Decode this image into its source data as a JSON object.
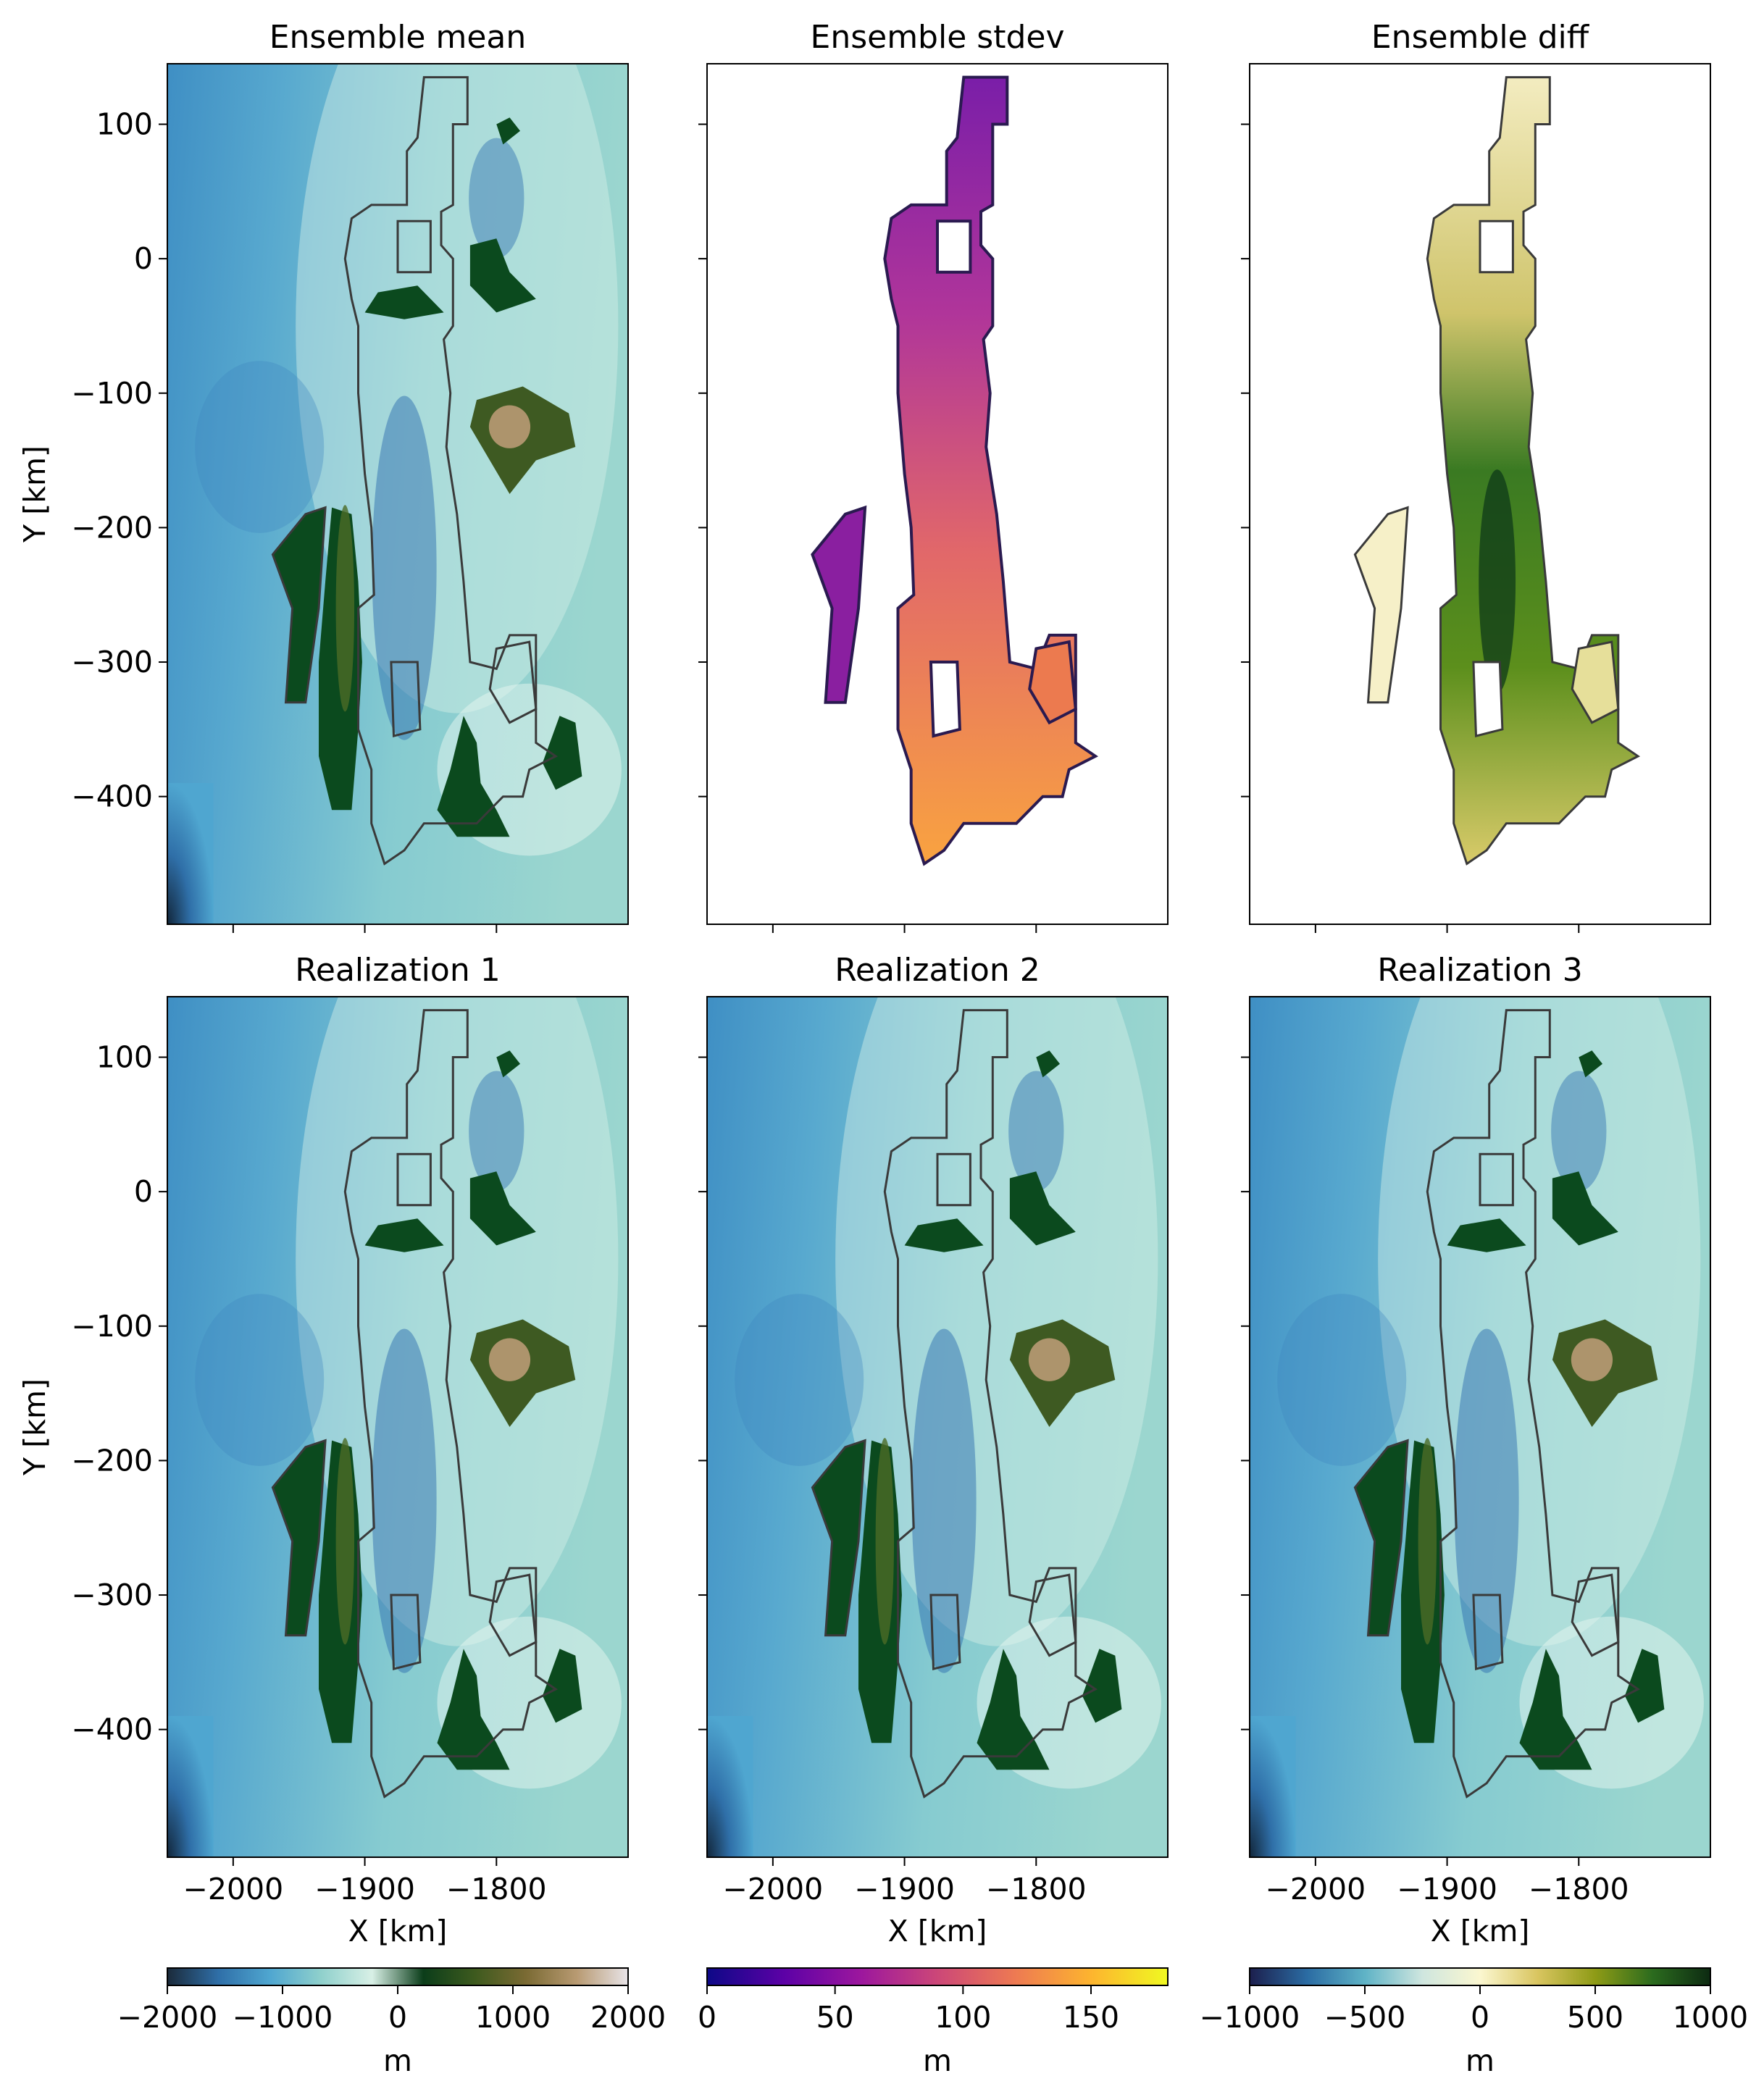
{
  "figure": {
    "panel_titles": [
      "Ensemble mean",
      "Ensemble stdev",
      "Ensemble diff",
      "Realization 1",
      "Realization 2",
      "Realization 3"
    ],
    "y_axis_label": "Y [km]",
    "x_axis_label": "X [km]",
    "colorbar_unit": "m"
  },
  "chart_data": [
    {
      "type": "heatmap",
      "title": "Ensemble mean",
      "xlabel": "",
      "ylabel": "Y [km]",
      "xlim": [
        -2050,
        -1700
      ],
      "ylim": [
        -495,
        145
      ],
      "xticks": [
        -2000,
        -1900,
        -1800
      ],
      "xtick_labels_shown": false,
      "yticks": [
        100,
        0,
        -100,
        -200,
        -300,
        -400
      ],
      "ytick_labels": [
        "100",
        "0",
        "−100",
        "−200",
        "−300",
        "−400"
      ],
      "colormap": "topography",
      "colorbar": "elevation"
    },
    {
      "type": "heatmap",
      "title": "Ensemble stdev",
      "xlabel": "",
      "ylabel": "",
      "xlim": [
        -2050,
        -1700
      ],
      "ylim": [
        -495,
        145
      ],
      "xticks": [
        -2000,
        -1900,
        -1800
      ],
      "yticks": [
        100,
        0,
        -100,
        -200,
        -300,
        -400
      ],
      "colormap": "plasma",
      "colorbar": "stdev"
    },
    {
      "type": "heatmap",
      "title": "Ensemble diff",
      "xlabel": "",
      "ylabel": "",
      "xlim": [
        -2050,
        -1700
      ],
      "ylim": [
        -495,
        145
      ],
      "xticks": [
        -2000,
        -1900,
        -1800
      ],
      "yticks": [
        100,
        0,
        -100,
        -200,
        -300,
        -400
      ],
      "colormap": "diverging",
      "colorbar": "diff"
    },
    {
      "type": "heatmap",
      "title": "Realization 1",
      "xlabel": "X [km]",
      "ylabel": "Y [km]",
      "xlim": [
        -2050,
        -1700
      ],
      "ylim": [
        -495,
        145
      ],
      "xticks": [
        -2000,
        -1900,
        -1800
      ],
      "xtick_labels": [
        "−2000",
        "−1900",
        "−1800"
      ],
      "yticks": [
        100,
        0,
        -100,
        -200,
        -300,
        -400
      ],
      "ytick_labels": [
        "100",
        "0",
        "−100",
        "−200",
        "−300",
        "−400"
      ],
      "colormap": "topography",
      "colorbar": "elevation"
    },
    {
      "type": "heatmap",
      "title": "Realization 2",
      "xlabel": "X [km]",
      "ylabel": "",
      "xlim": [
        -2050,
        -1700
      ],
      "ylim": [
        -495,
        145
      ],
      "xticks": [
        -2000,
        -1900,
        -1800
      ],
      "xtick_labels": [
        "−2000",
        "−1900",
        "−1800"
      ],
      "yticks": [
        100,
        0,
        -100,
        -200,
        -300,
        -400
      ],
      "colormap": "topography",
      "colorbar": "elevation"
    },
    {
      "type": "heatmap",
      "title": "Realization 3",
      "xlabel": "X [km]",
      "ylabel": "",
      "xlim": [
        -2050,
        -1700
      ],
      "ylim": [
        -495,
        145
      ],
      "xticks": [
        -2000,
        -1900,
        -1800
      ],
      "xtick_labels": [
        "−2000",
        "−1900",
        "−1800"
      ],
      "yticks": [
        100,
        0,
        -100,
        -200,
        -300,
        -400
      ],
      "colormap": "topography",
      "colorbar": "elevation"
    }
  ],
  "colorbars": [
    {
      "name": "elevation",
      "label": "m",
      "range": [
        -2000,
        2000
      ],
      "ticks": [
        -2000,
        -1000,
        0,
        1000,
        2000
      ],
      "tick_labels": [
        "−2000",
        "−1000",
        "0",
        "1000",
        "2000"
      ],
      "colors": [
        "#1b2a3a",
        "#2f6fa8",
        "#4fa6d0",
        "#8fd0cc",
        "#d8f0e6",
        "#0b3d1a",
        "#3d5a1e",
        "#7a6a33",
        "#b89a72",
        "#e8e4e8"
      ]
    },
    {
      "name": "stdev",
      "label": "m",
      "range": [
        0,
        180
      ],
      "ticks": [
        0,
        50,
        100,
        150
      ],
      "tick_labels": [
        "0",
        "50",
        "100",
        "150"
      ],
      "colors": [
        "#0d0887",
        "#5c01a6",
        "#9c179e",
        "#cc4778",
        "#ed7953",
        "#fdb42f",
        "#f0f921"
      ]
    },
    {
      "name": "diff",
      "label": "m",
      "range": [
        -1000,
        1000
      ],
      "ticks": [
        -1000,
        -500,
        0,
        500,
        1000
      ],
      "tick_labels": [
        "−1000",
        "−500",
        "0",
        "500",
        "1000"
      ],
      "colors": [
        "#1c1f4d",
        "#2b6ca3",
        "#5fb3c6",
        "#cfe6df",
        "#fbf7d0",
        "#d9c560",
        "#8e9b16",
        "#2b6b1e",
        "#0d2a12"
      ]
    }
  ]
}
